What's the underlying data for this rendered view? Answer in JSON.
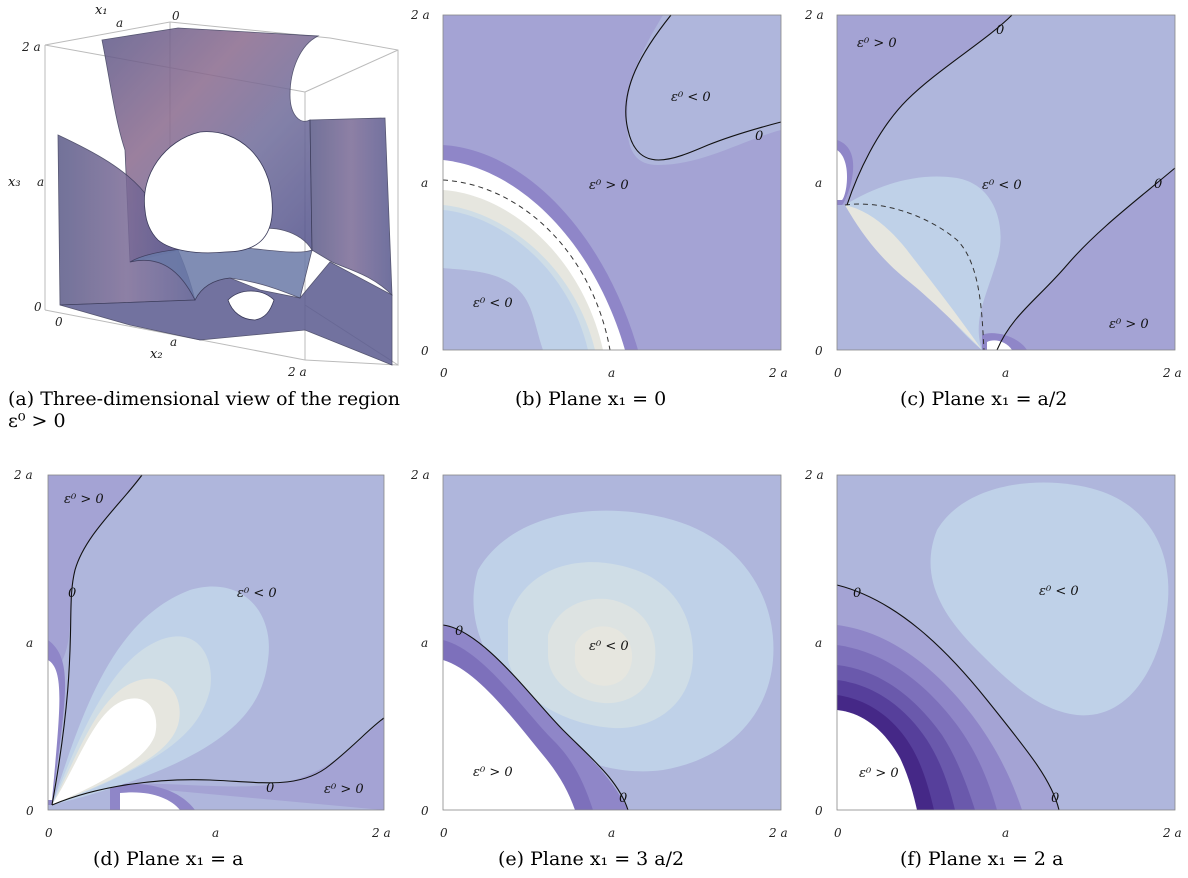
{
  "ticks": {
    "zero": "0",
    "a": "a",
    "two_a": "2 a"
  },
  "axis_labels": {
    "x1": "x₁",
    "x2": "x₂",
    "x3": "x₃"
  },
  "region_labels": {
    "pos": "ε⁰ > 0",
    "neg": "ε⁰ < 0",
    "zero": "0"
  },
  "captions": {
    "a": "(a) Three-dimensional view of the region ε⁰ > 0",
    "b": "(b) Plane x₁ = 0",
    "c": "(c) Plane x₁ = a/2",
    "d": "(d) Plane x₁ = a",
    "e": "(e) Plane x₁ = 3 a/2",
    "f": "(f) Plane x₁ = 2 a"
  },
  "colors": {
    "level0": "#a4a3d4",
    "level_neg1": "#afb6dc",
    "level_neg2": "#bfd1e8",
    "level_neg3": "#cfdde6",
    "level_neg4": "#e6e6df",
    "level_pos1": "#8f86c8",
    "level_pos2": "#7d70bb",
    "level_pos3": "#6a59ac",
    "level_pos4": "#563f9b",
    "level_pos5": "#452887"
  }
}
